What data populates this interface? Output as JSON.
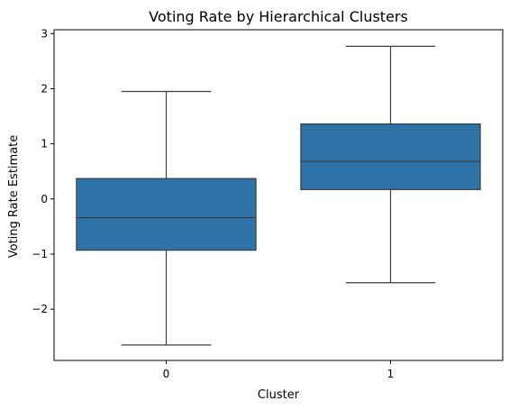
{
  "chart_data": {
    "type": "box",
    "title": "Voting Rate by Hierarchical Clusters",
    "xlabel": "Cluster",
    "ylabel": "Voting Rate Estimate",
    "categories": [
      "0",
      "1"
    ],
    "ylim": [
      -2.93,
      3.07
    ],
    "yticks": [
      -2,
      -1,
      0,
      1,
      2,
      3
    ],
    "ytick_labels": [
      "−2",
      "−1",
      "0",
      "1",
      "2",
      "3"
    ],
    "boxes": [
      {
        "category": "0",
        "whisker_low": -2.65,
        "q1": -0.93,
        "median": -0.34,
        "q3": 0.37,
        "whisker_high": 1.95
      },
      {
        "category": "1",
        "whisker_low": -1.52,
        "q1": 0.17,
        "median": 0.68,
        "q3": 1.36,
        "whisker_high": 2.77
      }
    ],
    "grid": false,
    "box_color": "#2f74a9",
    "line_color": "#3d3d3d"
  }
}
